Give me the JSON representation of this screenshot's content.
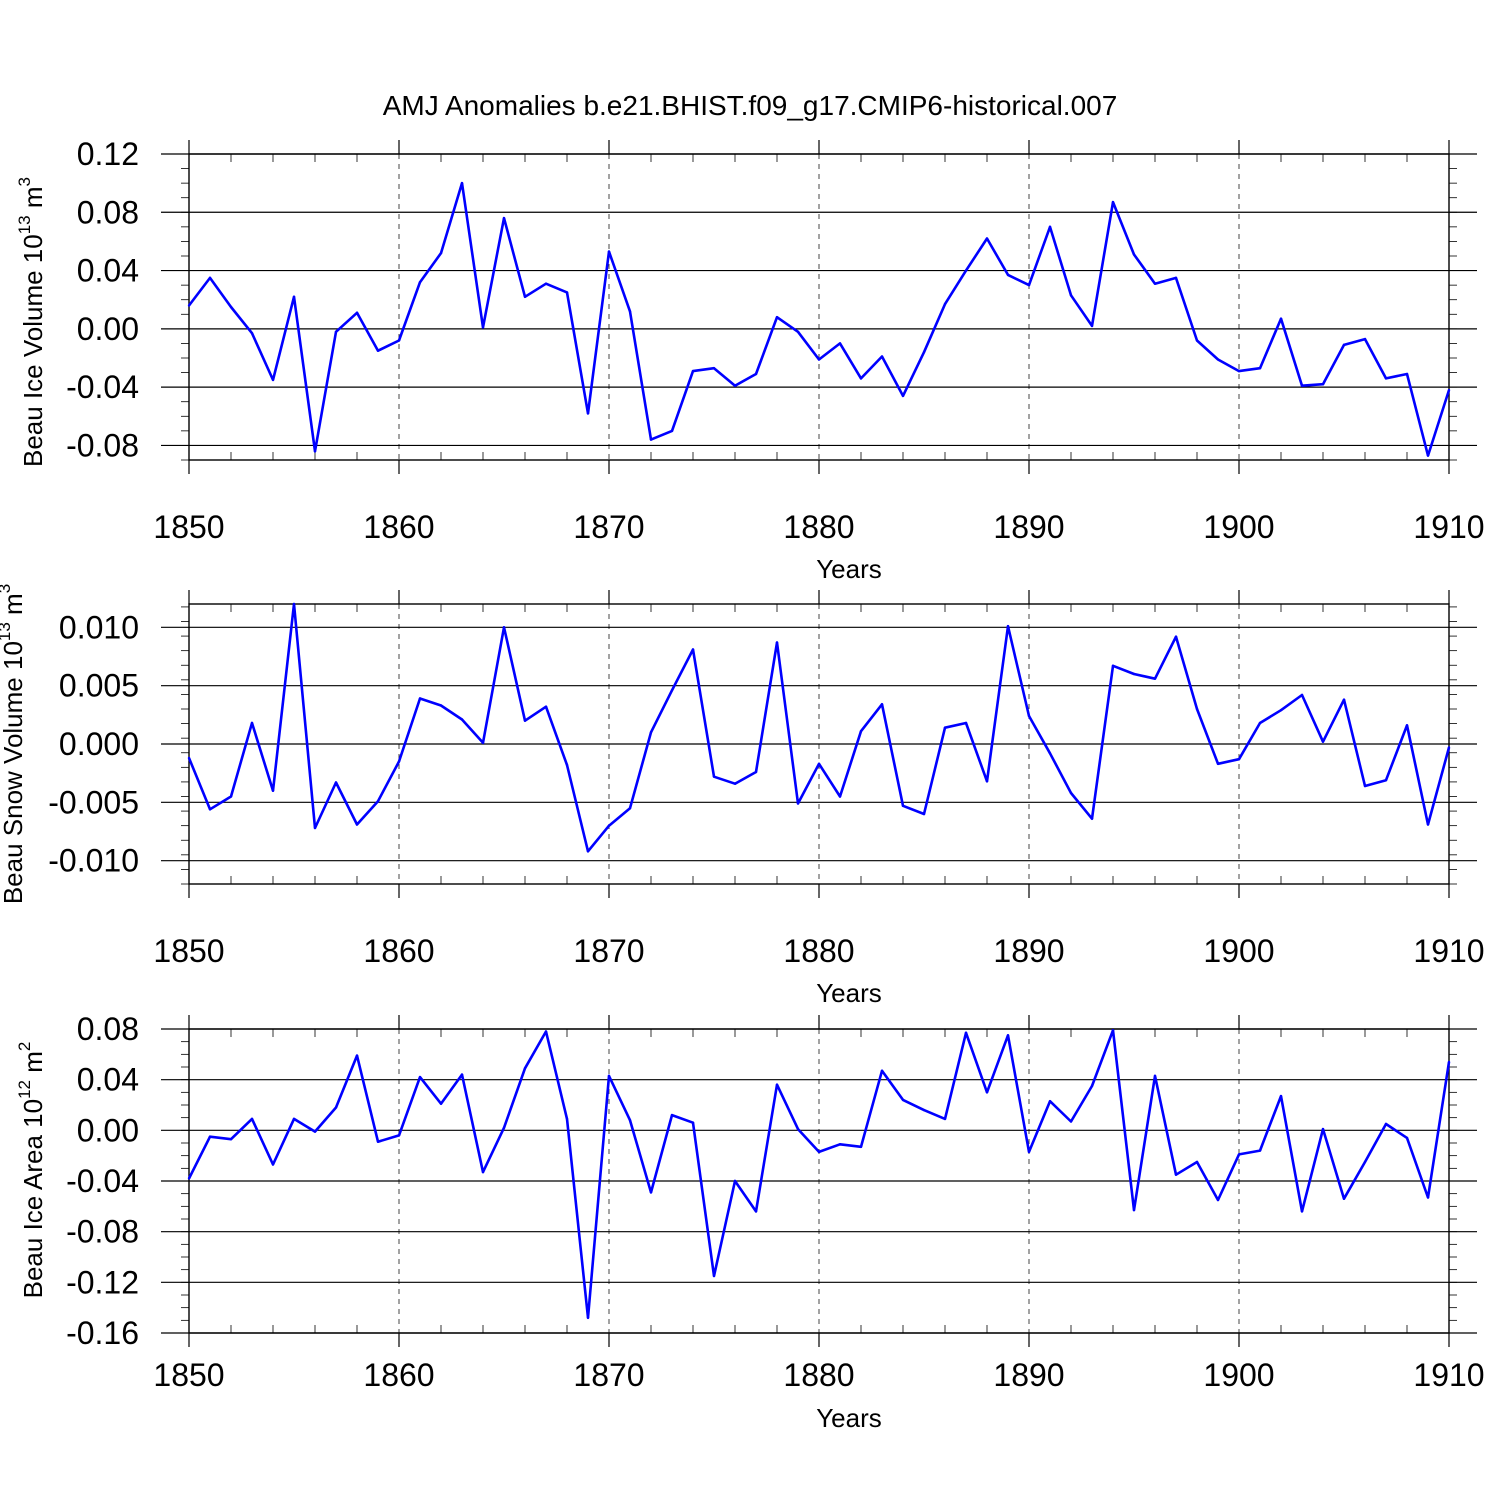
{
  "title": "AMJ Anomalies b.e21.BHIST.f09_g17.CMIP6-historical.007",
  "colors": {
    "series": "#0000ff",
    "axis": "#000000",
    "grid": "#444444"
  },
  "chart_data": [
    {
      "type": "line",
      "name": "ice-volume",
      "ylabel": "Beau Ice Volume 10",
      "ylabel_sup": "13",
      "ylabel_unit": " m",
      "ylabel_unit_sup": "3",
      "xlabel": "Years",
      "xlim": [
        1850,
        1910
      ],
      "ylim": [
        -0.09,
        0.12
      ],
      "xticks": [
        1850,
        1860,
        1870,
        1880,
        1890,
        1900,
        1910
      ],
      "xtick_labels": [
        "1850",
        "1860",
        "1870",
        "1880",
        "1890",
        "1900",
        "1910"
      ],
      "yticks": [
        -0.08,
        -0.04,
        0.0,
        0.04,
        0.08,
        0.12
      ],
      "ytick_labels": [
        "-0.08",
        "-0.04",
        "0.00",
        "0.04",
        "0.08",
        "0.12"
      ],
      "x_start": 1850,
      "values": [
        0.016,
        0.035,
        0.015,
        -0.003,
        -0.035,
        0.022,
        -0.084,
        -0.002,
        0.011,
        -0.015,
        -0.008,
        0.032,
        0.052,
        0.1,
        0.001,
        0.076,
        0.022,
        0.031,
        0.025,
        -0.058,
        0.053,
        0.012,
        -0.076,
        -0.07,
        -0.029,
        -0.027,
        -0.039,
        -0.031,
        0.008,
        -0.002,
        -0.021,
        -0.01,
        -0.034,
        -0.019,
        -0.046,
        -0.016,
        0.017,
        0.04,
        0.062,
        0.037,
        0.03,
        0.07,
        0.023,
        0.002,
        0.087,
        0.051,
        0.031,
        0.035,
        -0.008,
        -0.021,
        -0.029,
        -0.027,
        0.007,
        -0.039,
        -0.038,
        -0.011,
        -0.007,
        -0.034,
        -0.031,
        -0.087,
        -0.042
      ]
    },
    {
      "type": "line",
      "name": "snow-volume",
      "ylabel": "Beau Snow Volume 10",
      "ylabel_sup": "13",
      "ylabel_unit": " m",
      "ylabel_unit_sup": "3",
      "xlabel": "Years",
      "xlim": [
        1850,
        1910
      ],
      "ylim": [
        -0.012,
        0.012
      ],
      "xticks": [
        1850,
        1860,
        1870,
        1880,
        1890,
        1900,
        1910
      ],
      "xtick_labels": [
        "1850",
        "1860",
        "1870",
        "1880",
        "1890",
        "1900",
        "1910"
      ],
      "yticks": [
        -0.01,
        -0.005,
        0.0,
        0.005,
        0.01
      ],
      "ytick_labels": [
        "-0.010",
        "-0.005",
        "0.000",
        "0.005",
        "0.010"
      ],
      "x_start": 1850,
      "values": [
        -0.0012,
        -0.0056,
        -0.0045,
        0.0018,
        -0.004,
        0.012,
        -0.0072,
        -0.0033,
        -0.0069,
        -0.0049,
        -0.0015,
        0.0039,
        0.0033,
        0.0021,
        0.0001,
        0.01,
        0.002,
        0.0032,
        -0.0018,
        -0.0092,
        -0.007,
        -0.0055,
        0.001,
        0.0046,
        0.0081,
        -0.0028,
        -0.0034,
        -0.0024,
        0.0087,
        -0.0051,
        -0.0017,
        -0.0045,
        0.0011,
        0.0034,
        -0.0053,
        -0.006,
        0.0014,
        0.0018,
        -0.0032,
        0.0101,
        0.0024,
        -0.0008,
        -0.0042,
        -0.0064,
        0.0067,
        0.006,
        0.0056,
        0.0092,
        0.003,
        -0.0017,
        -0.0013,
        0.0018,
        0.0029,
        0.0042,
        0.0002,
        0.0038,
        -0.0036,
        -0.0031,
        0.0016,
        -0.0069,
        -0.0003
      ]
    },
    {
      "type": "line",
      "name": "ice-area",
      "ylabel": "Beau Ice Area 10",
      "ylabel_sup": "12",
      "ylabel_unit": " m",
      "ylabel_unit_sup": "2",
      "xlabel": "Years",
      "xlim": [
        1850,
        1910
      ],
      "ylim": [
        -0.16,
        0.08
      ],
      "xticks": [
        1850,
        1860,
        1870,
        1880,
        1890,
        1900,
        1910
      ],
      "xtick_labels": [
        "1850",
        "1860",
        "1870",
        "1880",
        "1890",
        "1900",
        "1910"
      ],
      "yticks": [
        -0.16,
        -0.12,
        -0.08,
        -0.04,
        0.0,
        0.04,
        0.08
      ],
      "ytick_labels": [
        "-0.16",
        "-0.12",
        "-0.08",
        "-0.04",
        "0.00",
        "0.04",
        "0.08"
      ],
      "x_start": 1850,
      "values": [
        -0.038,
        -0.005,
        -0.007,
        0.009,
        -0.027,
        0.009,
        -0.001,
        0.018,
        0.059,
        -0.009,
        -0.004,
        0.042,
        0.021,
        0.044,
        -0.033,
        0.002,
        0.049,
        0.078,
        0.009,
        -0.148,
        0.043,
        0.008,
        -0.049,
        0.012,
        0.006,
        -0.115,
        -0.04,
        -0.064,
        0.036,
        0.001,
        -0.017,
        -0.011,
        -0.013,
        0.047,
        0.024,
        0.016,
        0.009,
        0.077,
        0.03,
        0.075,
        -0.017,
        0.023,
        0.007,
        0.035,
        0.079,
        -0.063,
        0.043,
        -0.035,
        -0.025,
        -0.055,
        -0.019,
        -0.016,
        0.027,
        -0.064,
        0.001,
        -0.054,
        -0.025,
        0.005,
        -0.006,
        -0.053,
        0.054
      ]
    }
  ]
}
